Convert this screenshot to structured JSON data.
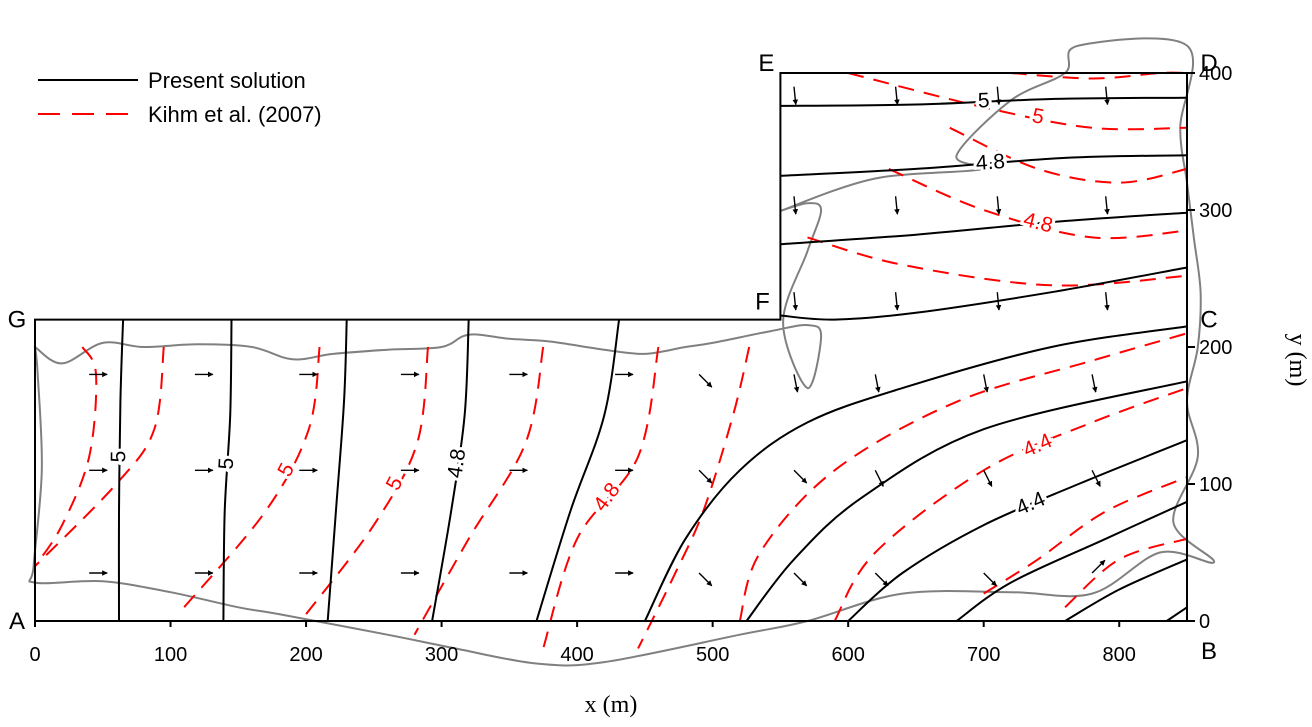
{
  "chart_data": {
    "type": "line",
    "title": "",
    "xlabel": "x (m)",
    "ylabel": "y (m)",
    "xlim": [
      0,
      850
    ],
    "ylim": [
      0,
      400
    ],
    "x_ticks": [
      "0",
      "100",
      "200",
      "300",
      "400",
      "500",
      "600",
      "700",
      "800"
    ],
    "y_ticks": [
      "0",
      "100",
      "200",
      "300",
      "400"
    ],
    "grid": false,
    "legend_position": "top-left",
    "colors": {
      "present": "#000000",
      "kihm": "#ff0000",
      "outline": "#808080"
    },
    "legend": [
      {
        "label": "Present solution",
        "style": "solid",
        "color": "#000000"
      },
      {
        "label": "Kihm et al. (2007)",
        "style": "dashed",
        "color": "#ff0000"
      }
    ],
    "corners": [
      {
        "label": "A",
        "x": 0,
        "y": 0
      },
      {
        "label": "B",
        "x": 850,
        "y": 0
      },
      {
        "label": "C",
        "x": 850,
        "y": 220
      },
      {
        "label": "D",
        "x": 850,
        "y": 400
      },
      {
        "label": "E",
        "x": 550,
        "y": 400
      },
      {
        "label": "F",
        "x": 550,
        "y": 220
      },
      {
        "label": "G",
        "x": 0,
        "y": 220
      }
    ],
    "domain_boundary": [
      [
        0,
        0
      ],
      [
        850,
        0
      ],
      [
        850,
        400
      ],
      [
        550,
        400
      ],
      [
        550,
        220
      ],
      [
        0,
        220
      ],
      [
        0,
        0
      ]
    ],
    "outline_region": [
      [
        0,
        200
      ],
      [
        20,
        188
      ],
      [
        50,
        203
      ],
      [
        80,
        200
      ],
      [
        120,
        202
      ],
      [
        160,
        200
      ],
      [
        190,
        191
      ],
      [
        220,
        195
      ],
      [
        260,
        198
      ],
      [
        300,
        200
      ],
      [
        320,
        209
      ],
      [
        350,
        206
      ],
      [
        380,
        204
      ],
      [
        420,
        198
      ],
      [
        450,
        195
      ],
      [
        480,
        200
      ],
      [
        500,
        203
      ],
      [
        540,
        211
      ],
      [
        570,
        216
      ],
      [
        580,
        208
      ],
      [
        570,
        170
      ],
      [
        552,
        218
      ],
      [
        570,
        270
      ],
      [
        580,
        300
      ],
      [
        570,
        305
      ],
      [
        552,
        300
      ],
      [
        620,
        323
      ],
      [
        700,
        330
      ],
      [
        680,
        340
      ],
      [
        720,
        380
      ],
      [
        760,
        400
      ],
      [
        770,
        420
      ],
      [
        850,
        420
      ],
      [
        845,
        360
      ],
      [
        850,
        320
      ],
      [
        855,
        280
      ],
      [
        860,
        240
      ],
      [
        858,
        200
      ],
      [
        850,
        160
      ],
      [
        858,
        120
      ],
      [
        840,
        72
      ],
      [
        870,
        43
      ],
      [
        830,
        50
      ],
      [
        780,
        20
      ],
      [
        720,
        21
      ],
      [
        640,
        20
      ],
      [
        570,
        0
      ],
      [
        520,
        -10
      ],
      [
        420,
        -30
      ],
      [
        370,
        -31
      ],
      [
        310,
        -20
      ],
      [
        260,
        -10
      ],
      [
        180,
        5
      ],
      [
        150,
        10
      ],
      [
        100,
        21
      ],
      [
        50,
        29
      ],
      [
        0,
        28
      ],
      [
        -1,
        40
      ],
      [
        5,
        110
      ],
      [
        2,
        180
      ],
      [
        0,
        200
      ]
    ],
    "present_solution": [
      {
        "label": "5",
        "points": [
          [
            65,
            220
          ],
          [
            63,
            160
          ],
          [
            62,
            80
          ],
          [
            62,
            0
          ]
        ]
      },
      {
        "label": "5",
        "points": [
          [
            145,
            220
          ],
          [
            144,
            150
          ],
          [
            140,
            80
          ],
          [
            139,
            0
          ]
        ]
      },
      {
        "label": "",
        "points": [
          [
            230,
            220
          ],
          [
            228,
            160
          ],
          [
            222,
            80
          ],
          [
            216,
            0
          ]
        ]
      },
      {
        "label": "4.8",
        "points": [
          [
            320,
            220
          ],
          [
            317,
            150
          ],
          [
            307,
            80
          ],
          [
            293,
            0
          ]
        ]
      },
      {
        "label": "",
        "points": [
          [
            431,
            220
          ],
          [
            420,
            150
          ],
          [
            395,
            80
          ],
          [
            370,
            0
          ]
        ]
      },
      {
        "label": "",
        "points": [
          [
            450,
            0
          ],
          [
            480,
            60
          ],
          [
            520,
            110
          ],
          [
            570,
            145
          ],
          [
            640,
            170
          ],
          [
            750,
            200
          ],
          [
            850,
            215
          ]
        ]
      },
      {
        "label": "",
        "points": [
          [
            525,
            0
          ],
          [
            560,
            45
          ],
          [
            610,
            90
          ],
          [
            700,
            140
          ],
          [
            850,
            175
          ]
        ]
      },
      {
        "label": "4.4",
        "points": [
          [
            600,
            0
          ],
          [
            640,
            35
          ],
          [
            700,
            70
          ],
          [
            770,
            100
          ],
          [
            850,
            132
          ]
        ]
      },
      {
        "label": "",
        "points": [
          [
            680,
            0
          ],
          [
            720,
            28
          ],
          [
            790,
            60
          ],
          [
            850,
            87
          ]
        ]
      },
      {
        "label": "",
        "points": [
          [
            760,
            0
          ],
          [
            800,
            23
          ],
          [
            850,
            45
          ]
        ]
      },
      {
        "label": "",
        "points": [
          [
            835,
            0
          ],
          [
            850,
            10
          ]
        ]
      },
      {
        "label": "",
        "points": [
          [
            550,
            223
          ],
          [
            590,
            220
          ],
          [
            650,
            225
          ],
          [
            750,
            240
          ],
          [
            850,
            258
          ]
        ]
      },
      {
        "label": "",
        "points": [
          [
            550,
            275
          ],
          [
            650,
            282
          ],
          [
            760,
            292
          ],
          [
            850,
            298
          ]
        ]
      },
      {
        "label": "4.8",
        "points": [
          [
            550,
            325
          ],
          [
            650,
            330
          ],
          [
            760,
            338
          ],
          [
            850,
            340
          ]
        ]
      },
      {
        "label": "5",
        "points": [
          [
            550,
            376
          ],
          [
            650,
            377
          ],
          [
            750,
            381
          ],
          [
            850,
            382
          ]
        ]
      }
    ],
    "kihm_solution": [
      {
        "label": "",
        "points": [
          [
            35,
            200
          ],
          [
            45,
            180
          ],
          [
            40,
            120
          ],
          [
            20,
            70
          ],
          [
            0,
            40
          ]
        ]
      },
      {
        "label": "",
        "points": [
          [
            95,
            200
          ],
          [
            88,
            140
          ],
          [
            60,
            100
          ],
          [
            0,
            40
          ]
        ]
      },
      {
        "label": "5",
        "points": [
          [
            210,
            200
          ],
          [
            202,
            140
          ],
          [
            170,
            80
          ],
          [
            110,
            10
          ]
        ]
      },
      {
        "label": "5",
        "points": [
          [
            290,
            200
          ],
          [
            282,
            130
          ],
          [
            250,
            70
          ],
          [
            200,
            5
          ]
        ]
      },
      {
        "label": "",
        "points": [
          [
            375,
            200
          ],
          [
            362,
            130
          ],
          [
            320,
            60
          ],
          [
            280,
            -10
          ]
        ]
      },
      {
        "label": "4.8",
        "points": [
          [
            460,
            200
          ],
          [
            445,
            120
          ],
          [
            400,
            60
          ],
          [
            375,
            -20
          ]
        ]
      },
      {
        "label": "",
        "points": [
          [
            527,
            200
          ],
          [
            515,
            150
          ],
          [
            493,
            80
          ],
          [
            470,
            30
          ],
          [
            445,
            -20
          ]
        ]
      },
      {
        "label": "",
        "points": [
          [
            520,
            0
          ],
          [
            535,
            50
          ],
          [
            590,
            110
          ],
          [
            680,
            160
          ],
          [
            780,
            190
          ],
          [
            850,
            210
          ]
        ]
      },
      {
        "label": "4.4",
        "points": [
          [
            590,
            0
          ],
          [
            620,
            50
          ],
          [
            700,
            110
          ],
          [
            780,
            145
          ],
          [
            850,
            170
          ]
        ]
      },
      {
        "label": "",
        "points": [
          [
            700,
            20
          ],
          [
            740,
            45
          ],
          [
            790,
            80
          ],
          [
            850,
            105
          ]
        ]
      },
      {
        "label": "",
        "points": [
          [
            760,
            10
          ],
          [
            800,
            45
          ],
          [
            850,
            60
          ]
        ]
      },
      {
        "label": "",
        "points": [
          [
            570,
            280
          ],
          [
            640,
            260
          ],
          [
            750,
            245
          ],
          [
            850,
            252
          ]
        ]
      },
      {
        "label": "4.8",
        "points": [
          [
            630,
            330
          ],
          [
            700,
            300
          ],
          [
            780,
            280
          ],
          [
            850,
            285
          ]
        ]
      },
      {
        "label": "",
        "points": [
          [
            675,
            360
          ],
          [
            740,
            330
          ],
          [
            800,
            320
          ],
          [
            850,
            330
          ]
        ]
      },
      {
        "label": "5",
        "points": [
          [
            600,
            400
          ],
          [
            700,
            375
          ],
          [
            780,
            360
          ],
          [
            850,
            360
          ]
        ]
      },
      {
        "label": "",
        "points": [
          [
            720,
            400
          ],
          [
            780,
            396
          ],
          [
            830,
            400
          ],
          [
            850,
            400
          ]
        ]
      }
    ],
    "velocity_vectors": [
      {
        "x": 40,
        "y": 180,
        "dx": 1,
        "dy": 0
      },
      {
        "x": 118,
        "y": 180,
        "dx": 1,
        "dy": 0
      },
      {
        "x": 195,
        "y": 180,
        "dx": 1,
        "dy": 0
      },
      {
        "x": 270,
        "y": 180,
        "dx": 1,
        "dy": 0
      },
      {
        "x": 350,
        "y": 180,
        "dx": 1,
        "dy": 0
      },
      {
        "x": 428,
        "y": 180,
        "dx": 1,
        "dy": 0
      },
      {
        "x": 490,
        "y": 180,
        "dx": 0.7,
        "dy": -0.7
      },
      {
        "x": 560,
        "y": 180,
        "dx": 0.2,
        "dy": -1
      },
      {
        "x": 620,
        "y": 180,
        "dx": 0.2,
        "dy": -1
      },
      {
        "x": 700,
        "y": 180,
        "dx": 0.2,
        "dy": -1
      },
      {
        "x": 780,
        "y": 180,
        "dx": 0.2,
        "dy": -1
      },
      {
        "x": 40,
        "y": 110,
        "dx": 1,
        "dy": 0
      },
      {
        "x": 118,
        "y": 110,
        "dx": 1,
        "dy": 0
      },
      {
        "x": 195,
        "y": 110,
        "dx": 1,
        "dy": 0
      },
      {
        "x": 270,
        "y": 110,
        "dx": 1,
        "dy": 0
      },
      {
        "x": 350,
        "y": 110,
        "dx": 1,
        "dy": 0
      },
      {
        "x": 428,
        "y": 110,
        "dx": 1,
        "dy": 0
      },
      {
        "x": 490,
        "y": 110,
        "dx": 0.7,
        "dy": -0.7
      },
      {
        "x": 560,
        "y": 110,
        "dx": 0.7,
        "dy": -0.7
      },
      {
        "x": 620,
        "y": 110,
        "dx": 0.5,
        "dy": -1
      },
      {
        "x": 700,
        "y": 110,
        "dx": 0.5,
        "dy": -1
      },
      {
        "x": 780,
        "y": 110,
        "dx": 0.5,
        "dy": -1
      },
      {
        "x": 40,
        "y": 35,
        "dx": 1,
        "dy": 0
      },
      {
        "x": 118,
        "y": 35,
        "dx": 1,
        "dy": 0
      },
      {
        "x": 195,
        "y": 35,
        "dx": 1,
        "dy": 0
      },
      {
        "x": 270,
        "y": 35,
        "dx": 1,
        "dy": 0
      },
      {
        "x": 350,
        "y": 35,
        "dx": 1,
        "dy": 0
      },
      {
        "x": 428,
        "y": 35,
        "dx": 1,
        "dy": 0
      },
      {
        "x": 490,
        "y": 35,
        "dx": 0.7,
        "dy": -0.7
      },
      {
        "x": 560,
        "y": 35,
        "dx": 0.7,
        "dy": -0.7
      },
      {
        "x": 620,
        "y": 35,
        "dx": 0.7,
        "dy": -0.7
      },
      {
        "x": 700,
        "y": 35,
        "dx": 0.7,
        "dy": -0.7
      },
      {
        "x": 780,
        "y": 35,
        "dx": 0.7,
        "dy": 0.7
      },
      {
        "x": 560,
        "y": 240,
        "dx": 0.1,
        "dy": -1
      },
      {
        "x": 635,
        "y": 240,
        "dx": 0.1,
        "dy": -1
      },
      {
        "x": 710,
        "y": 240,
        "dx": 0.1,
        "dy": -1
      },
      {
        "x": 790,
        "y": 240,
        "dx": 0.1,
        "dy": -1
      },
      {
        "x": 560,
        "y": 310,
        "dx": 0.1,
        "dy": -1
      },
      {
        "x": 635,
        "y": 310,
        "dx": 0.1,
        "dy": -1
      },
      {
        "x": 710,
        "y": 310,
        "dx": 0.1,
        "dy": -1
      },
      {
        "x": 790,
        "y": 310,
        "dx": 0.1,
        "dy": -1
      },
      {
        "x": 560,
        "y": 390,
        "dx": 0.1,
        "dy": -1
      },
      {
        "x": 635,
        "y": 390,
        "dx": 0.1,
        "dy": -1
      },
      {
        "x": 710,
        "y": 390,
        "dx": 0.1,
        "dy": -1
      },
      {
        "x": 790,
        "y": 390,
        "dx": 0.1,
        "dy": -1
      }
    ]
  }
}
